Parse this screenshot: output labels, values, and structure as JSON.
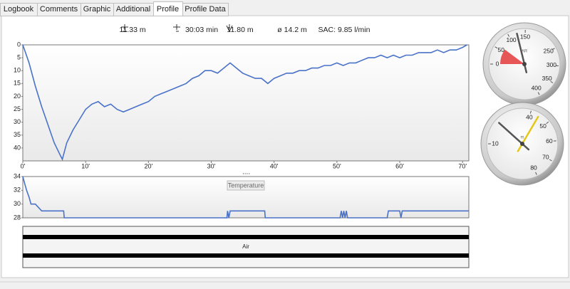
{
  "tabs": [
    "Logbook",
    "Comments",
    "Graphic",
    "Additional",
    "Profile",
    "Profile Data"
  ],
  "active_tab": 4,
  "stats": [
    "11.33 m",
    "30:03 min",
    "11.80 m",
    "ø 14.2 m",
    "SAC: 9.85 l/min"
  ],
  "chart_data": [
    {
      "type": "line",
      "color": "#4a72c8",
      "y_inverted": true,
      "x": [
        0,
        1,
        2,
        3,
        4,
        5,
        6,
        6.3,
        7,
        8,
        9,
        10,
        11,
        12,
        13,
        14,
        15,
        16,
        17,
        18,
        19,
        20,
        21,
        22,
        23,
        24,
        25,
        26,
        27,
        28,
        29,
        30,
        31,
        32,
        33,
        34,
        35,
        36,
        37,
        38,
        39,
        40,
        41,
        42,
        43,
        44,
        45,
        46,
        47,
        48,
        49,
        50,
        51,
        52,
        53,
        54,
        55,
        56,
        57,
        58,
        59,
        60,
        61,
        62,
        63,
        64,
        65,
        66,
        67,
        68,
        69,
        70,
        70.7
      ],
      "values": [
        0,
        7,
        16,
        24,
        31,
        38,
        43,
        44.4,
        38,
        33,
        29,
        25,
        23,
        22,
        24,
        23,
        25,
        26,
        25,
        24,
        23,
        22,
        20,
        19,
        18,
        17,
        16,
        15,
        13,
        12,
        10,
        10,
        11,
        9,
        7,
        9,
        11,
        12,
        13,
        13,
        15,
        13,
        12,
        11,
        11,
        10,
        10,
        9,
        9,
        8,
        8,
        7,
        8,
        7,
        7,
        6,
        5,
        5,
        4,
        5,
        4,
        5,
        4,
        4,
        3,
        3,
        3,
        2,
        3,
        2,
        2,
        1,
        0
      ],
      "xlim": [
        0,
        71
      ],
      "ylim": [
        0,
        45
      ],
      "xticks": [
        {
          "value": 0,
          "label": "0'"
        },
        {
          "value": 10,
          "label": "10'"
        },
        {
          "value": 20,
          "label": "20'"
        },
        {
          "value": 30,
          "label": "30'"
        },
        {
          "value": 40,
          "label": "40'"
        },
        {
          "value": 50,
          "label": "50'"
        },
        {
          "value": 60,
          "label": "60'"
        },
        {
          "value": 70,
          "label": "70'"
        }
      ],
      "yticks": [
        0,
        5,
        10,
        15,
        20,
        25,
        30,
        35,
        40
      ]
    },
    {
      "type": "line",
      "title": "Temperature",
      "color": "#4a72c8",
      "x": [
        0,
        0.3,
        0.6,
        1,
        1.3,
        2,
        3,
        3.5,
        6.5,
        6.6,
        32.5,
        32.6,
        32.8,
        33,
        33.5,
        38.5,
        38.6,
        50.5,
        50.7,
        50.9,
        51.1,
        51.3,
        51.5,
        51.7,
        58,
        58.2,
        60,
        60.2,
        60.4,
        71
      ],
      "values": [
        34,
        33,
        32,
        31,
        30,
        30,
        29,
        29,
        29,
        28,
        28,
        29,
        28,
        29,
        29,
        29,
        28,
        28,
        29,
        28,
        29,
        28,
        29,
        28,
        28,
        29,
        29,
        28,
        29,
        29
      ],
      "xlim": [
        0,
        71
      ],
      "ylim": [
        28,
        34
      ],
      "yticks": [
        28,
        30,
        32,
        34
      ]
    }
  ],
  "air_bar": {
    "label": "Air"
  },
  "gauges": [
    {
      "center_label": "AR",
      "ticks": [
        0,
        50,
        100,
        150,
        250,
        300,
        350,
        400
      ],
      "zones": [
        {
          "from": 0,
          "to": 60,
          "color": "#e64545"
        }
      ],
      "needles": [
        {
          "value": 125,
          "color": "#555555"
        }
      ]
    },
    {
      "center_label": "m",
      "ticks": [
        10,
        40,
        50,
        60,
        70,
        80
      ],
      "zones": [],
      "needles": [
        {
          "value": 22,
          "color": "#555555"
        },
        {
          "value": 44.4,
          "color": "#e6c619"
        }
      ]
    }
  ]
}
